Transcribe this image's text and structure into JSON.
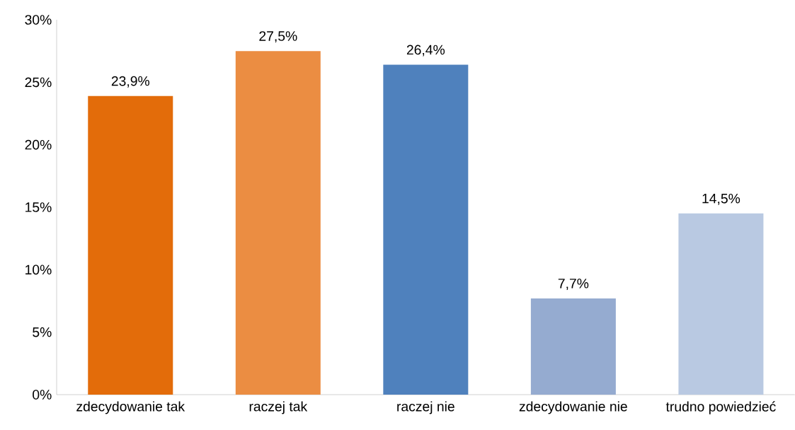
{
  "chart_data": {
    "type": "bar",
    "categories": [
      "zdecydowanie tak",
      "raczej tak",
      "raczej nie",
      "zdecydowanie nie",
      "trudno powiedzieć"
    ],
    "values": [
      23.9,
      27.5,
      26.4,
      7.7,
      14.5
    ],
    "colors": [
      "#e36c0a",
      "#eb8d42",
      "#4f81bd",
      "#95abd0",
      "#b9c9e2"
    ],
    "value_labels": [
      "23,9%",
      "27,5%",
      "26,4%",
      "7,7%",
      "14,5%"
    ],
    "ylim": [
      0,
      30
    ],
    "yticks": [
      {
        "value": 0,
        "label": "0%"
      },
      {
        "value": 5,
        "label": "5%"
      },
      {
        "value": 10,
        "label": "10%"
      },
      {
        "value": 15,
        "label": "15%"
      },
      {
        "value": 20,
        "label": "20%"
      },
      {
        "value": 25,
        "label": "25%"
      },
      {
        "value": 30,
        "label": "30%"
      }
    ],
    "grid": false
  }
}
